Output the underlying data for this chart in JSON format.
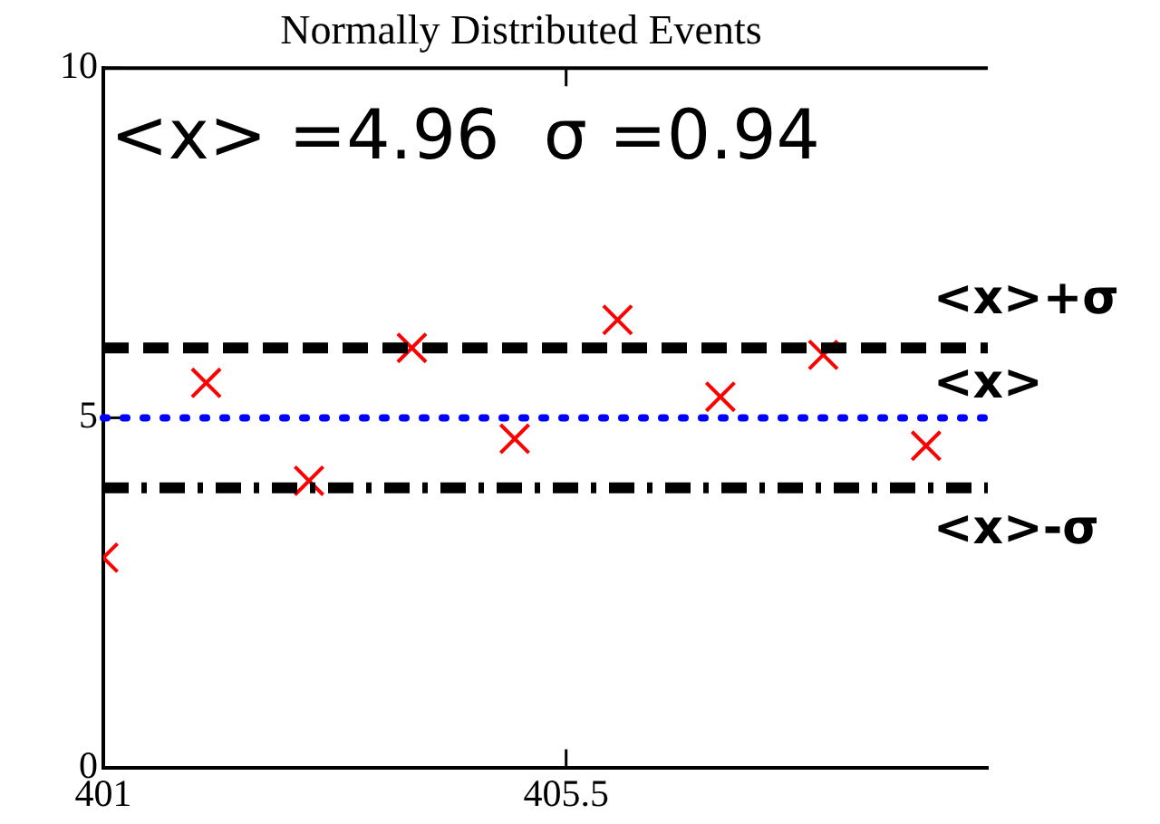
{
  "chart_data": {
    "type": "scatter",
    "title": "Normally Distributed Events",
    "series": [
      {
        "color": "#ff0000",
        "x": [
          401,
          402,
          403,
          404,
          405,
          406,
          407,
          408,
          409
        ],
        "values": [
          3.0,
          5.5,
          4.1,
          6.0,
          4.7,
          6.4,
          5.3,
          5.9,
          4.6
        ]
      }
    ],
    "marker": "cross",
    "xlim": [
      401,
      409.6
    ],
    "xticks": [
      401,
      405.5
    ],
    "ylim": [
      0,
      10
    ],
    "yticks": [
      0,
      5,
      10
    ],
    "grid": false,
    "legend": false,
    "ref_lines": [
      {
        "axis": "y",
        "value": 6,
        "label": "<x>+σ",
        "color": "#000000",
        "line_style": "dashed"
      },
      {
        "axis": "y",
        "value": 5,
        "label": "<x>",
        "color": "#0000ff",
        "line_style": "dotted"
      },
      {
        "axis": "y",
        "value": 4,
        "label": "<x>-σ",
        "color": "#000000",
        "line_style": "dashdot"
      }
    ],
    "annotations": [
      "<x> =4.96  σ =0.94"
    ]
  }
}
